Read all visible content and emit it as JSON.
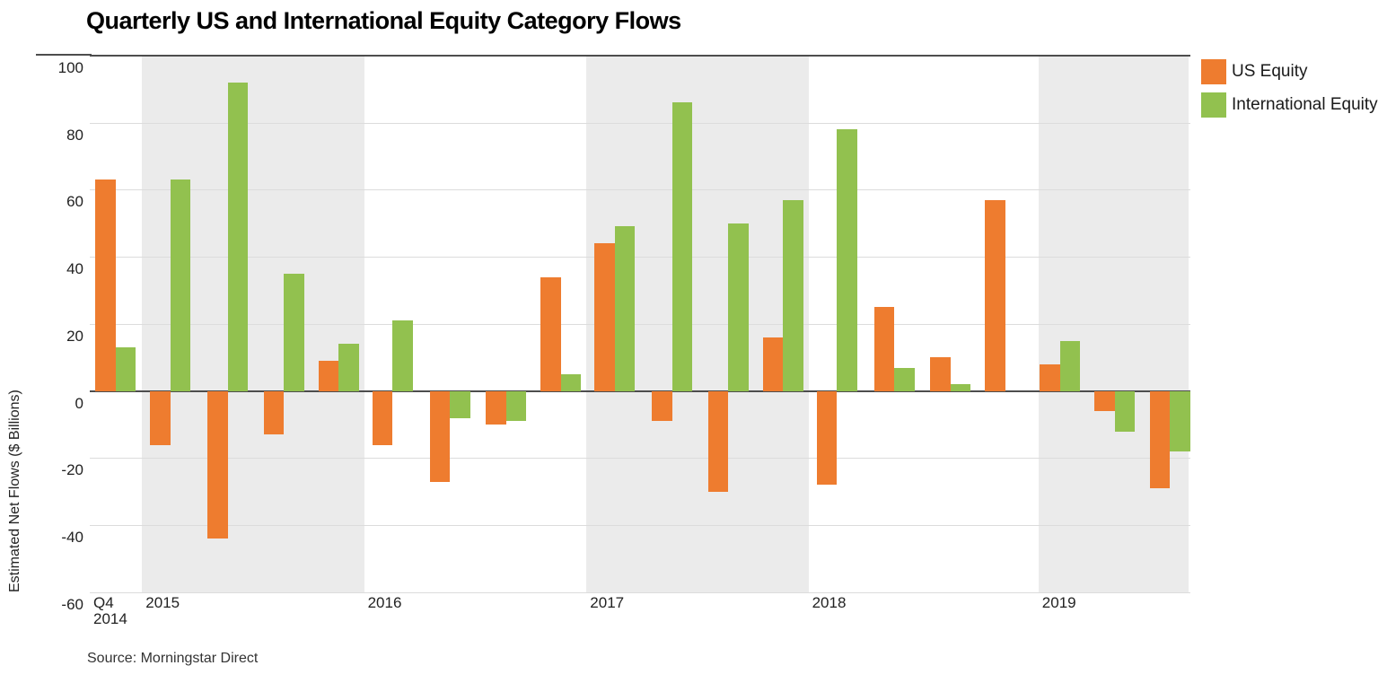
{
  "title": "Quarterly US and International Equity Category Flows",
  "source_note": "Source: Morningstar Direct",
  "colors": {
    "us_equity": "#EE7C2F",
    "intl_equity": "#92C14F",
    "band_gray": "#EBEBEB",
    "gridline": "#DCDCDC",
    "axis_dark": "#4D4D4D"
  },
  "legend": [
    {
      "label": "US Equity",
      "color_key": "us_equity"
    },
    {
      "label": "International Equity",
      "color_key": "intl_equity"
    }
  ],
  "y_axis": {
    "title": "Estimated Net Flows ($ Billions)",
    "ticks": [
      100,
      80,
      60,
      40,
      20,
      0,
      -20,
      -40,
      -60
    ]
  },
  "x_axis": {
    "first_label_line1": "Q4",
    "first_label_line2": "2014",
    "year_labels": [
      "2015",
      "2016",
      "2017",
      "2018",
      "2019"
    ]
  },
  "chart_data": {
    "type": "bar",
    "title": "Quarterly US and International Equity Category Flows",
    "ylabel": "Estimated Net Flows ($ Billions)",
    "ylim": [
      -60,
      100
    ],
    "grid": true,
    "legend_position": "top-right",
    "shaded_years": [
      "2015",
      "2017",
      "2019"
    ],
    "categories": [
      "2014 Q4",
      "2015 Q1",
      "2015 Q2",
      "2015 Q3",
      "2015 Q4",
      "2016 Q1",
      "2016 Q2",
      "2016 Q3",
      "2016 Q4",
      "2017 Q1",
      "2017 Q2",
      "2017 Q3",
      "2017 Q4",
      "2018 Q1",
      "2018 Q2",
      "2018 Q3",
      "2018 Q4",
      "2019 Q1",
      "2019 Q2",
      "2019 Q3"
    ],
    "series": [
      {
        "name": "US Equity",
        "values": [
          63,
          -16,
          -44,
          -13,
          9,
          -16,
          -27,
          -10,
          34,
          44,
          -9,
          -30,
          16,
          -28,
          25,
          10,
          57,
          8,
          -6,
          -29
        ]
      },
      {
        "name": "International Equity",
        "values": [
          13,
          63,
          92,
          35,
          14,
          21,
          -8,
          -9,
          5,
          49,
          86,
          50,
          57,
          78,
          7,
          2,
          0,
          15,
          -12,
          -18
        ]
      }
    ]
  }
}
